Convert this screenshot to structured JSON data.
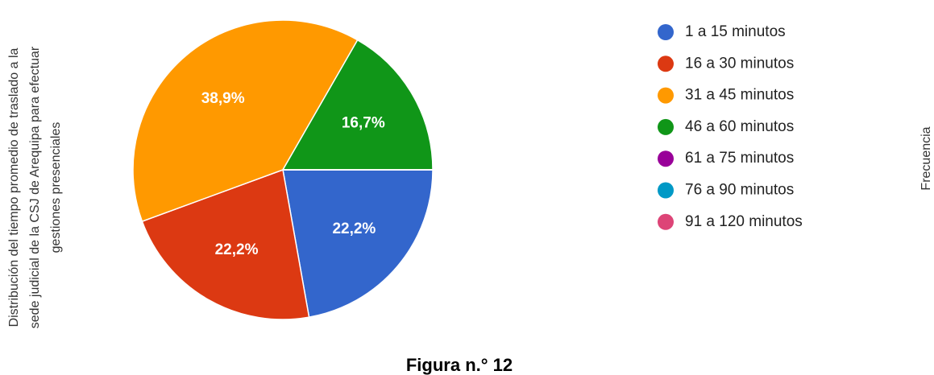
{
  "chart_data": {
    "type": "pie",
    "ylabel": [
      "Distribución del tiempo promedio de traslado a la",
      "sede judicial de la CSJ de Arequipa para efectuar",
      "gestiones presenciales"
    ],
    "y2label": "Frecuencia",
    "caption": "Figura n.° 12",
    "categories": [
      "1 a 15 minutos",
      "16 a 30 minutos",
      "31 a 45 minutos",
      "46 a 60 minutos",
      "61 a 75 minutos",
      "76 a 90 minutos",
      "91 a 120 minutos"
    ],
    "values": [
      22.2,
      22.2,
      38.9,
      16.7,
      0,
      0,
      0
    ],
    "value_labels": [
      "22,2%",
      "22,2%",
      "38,9%",
      "16,7%",
      null,
      null,
      null
    ],
    "colors": [
      "#3366cc",
      "#dc3912",
      "#ff9900",
      "#109618",
      "#990099",
      "#0099c6",
      "#dd4477"
    ],
    "legend": "right"
  }
}
